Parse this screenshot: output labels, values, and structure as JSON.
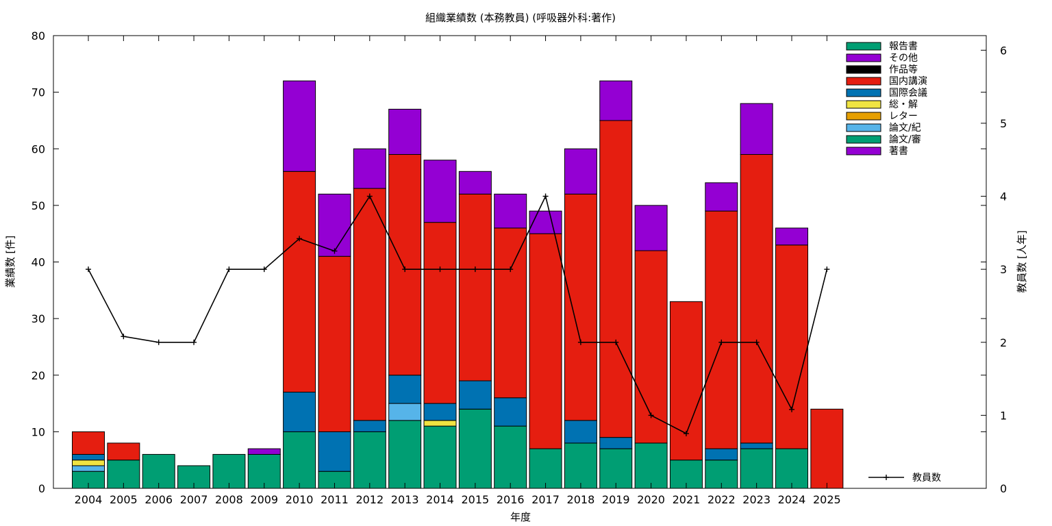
{
  "chart_data": {
    "type": "bar",
    "title": "組織業績数 (本務教員) (呼吸器外科:著作)",
    "xlabel": "年度",
    "ylabel": "業績数 [件]",
    "y2label": "教員数 [人年]",
    "ylim": [
      0,
      80
    ],
    "y2lim": [
      0,
      6.2
    ],
    "yticks": [
      0,
      10,
      20,
      30,
      40,
      50,
      60,
      70,
      80
    ],
    "y2ticks": [
      0,
      1,
      2,
      3,
      4,
      5,
      6
    ],
    "categories": [
      "2004",
      "2005",
      "2006",
      "2007",
      "2008",
      "2009",
      "2010",
      "2011",
      "2012",
      "2013",
      "2014",
      "2015",
      "2016",
      "2017",
      "2018",
      "2019",
      "2020",
      "2021",
      "2022",
      "2023",
      "2024",
      "2025"
    ],
    "legend_position": "top-right",
    "stack_order_bottom_to_top": [
      "論文/審",
      "論文/紀",
      "レター",
      "総・解",
      "国際会議",
      "国内講演",
      "作品等",
      "その他",
      "報告書",
      "著書"
    ],
    "series": [
      {
        "name": "報告書",
        "color": "#009e73",
        "values": [
          0,
          0,
          0,
          0,
          0,
          0,
          0,
          0,
          0,
          0,
          0,
          0,
          0,
          0,
          0,
          0,
          0,
          0,
          0,
          0,
          0,
          0
        ]
      },
      {
        "name": "その他",
        "color": "#9400d3",
        "values": [
          0,
          0,
          0,
          0,
          0,
          0,
          0,
          0,
          0,
          0,
          0,
          0,
          0,
          0,
          0,
          0,
          0,
          0,
          0,
          0,
          0,
          0
        ]
      },
      {
        "name": "作品等",
        "color": "#000000",
        "values": [
          0,
          0,
          0,
          0,
          0,
          0,
          0,
          0,
          0,
          0,
          0,
          0,
          0,
          0,
          0,
          0,
          0,
          0,
          0,
          0,
          0,
          0
        ]
      },
      {
        "name": "国内講演",
        "color": "#e51e10",
        "values": [
          4,
          3,
          0,
          0,
          0,
          0,
          39,
          31,
          41,
          39,
          32,
          33,
          30,
          38,
          40,
          56,
          34,
          28,
          42,
          51,
          36,
          14
        ]
      },
      {
        "name": "国際会議",
        "color": "#0072b2",
        "values": [
          1,
          0,
          0,
          0,
          0,
          0,
          7,
          7,
          2,
          5,
          3,
          5,
          5,
          0,
          4,
          2,
          0,
          0,
          2,
          1,
          0,
          0
        ]
      },
      {
        "name": "総・解",
        "color": "#f0e442",
        "values": [
          1,
          0,
          0,
          0,
          0,
          0,
          0,
          0,
          0,
          0,
          1,
          0,
          0,
          0,
          0,
          0,
          0,
          0,
          0,
          0,
          0,
          0
        ]
      },
      {
        "name": "レター",
        "color": "#e69f00",
        "values": [
          0,
          0,
          0,
          0,
          0,
          0,
          0,
          0,
          0,
          0,
          0,
          0,
          0,
          0,
          0,
          0,
          0,
          0,
          0,
          0,
          0,
          0
        ]
      },
      {
        "name": "論文/紀",
        "color": "#56b4e9",
        "values": [
          1,
          0,
          0,
          0,
          0,
          0,
          0,
          0,
          0,
          3,
          0,
          0,
          0,
          0,
          0,
          0,
          0,
          0,
          0,
          0,
          0,
          0
        ]
      },
      {
        "name": "論文/審",
        "color": "#009e73",
        "values": [
          3,
          5,
          6,
          4,
          6,
          6,
          10,
          3,
          10,
          12,
          11,
          14,
          11,
          7,
          8,
          7,
          8,
          5,
          5,
          7,
          7,
          0
        ]
      },
      {
        "name": "著書",
        "color": "#9400d3",
        "values": [
          0,
          0,
          0,
          0,
          0,
          1,
          16,
          11,
          7,
          8,
          11,
          4,
          6,
          4,
          8,
          7,
          8,
          0,
          5,
          9,
          3,
          0
        ]
      }
    ],
    "line_series": {
      "name": "教員数",
      "color": "#000000",
      "axis": "right",
      "values": [
        3,
        2.08,
        2,
        2,
        3,
        3,
        3.42,
        3.25,
        4,
        3,
        3,
        3,
        3,
        4,
        2,
        2,
        1,
        0.75,
        2,
        2,
        1.08,
        3
      ]
    }
  }
}
